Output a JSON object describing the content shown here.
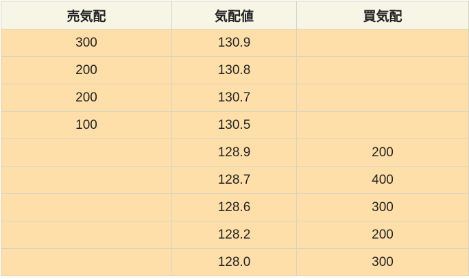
{
  "table": {
    "header": [
      "売気配",
      "気配値",
      "買気配"
    ],
    "rows": [
      [
        "300",
        "130.9",
        null
      ],
      [
        "200",
        "130.8",
        null
      ],
      [
        "200",
        "130.7",
        null
      ],
      [
        "100",
        "130.5",
        null
      ],
      [
        null,
        "128.9",
        "200"
      ],
      [
        null,
        "128.7",
        "400"
      ],
      [
        null,
        "128.6",
        "300"
      ],
      [
        null,
        "128.2",
        "200"
      ],
      [
        null,
        "128.0",
        "300"
      ]
    ]
  }
}
